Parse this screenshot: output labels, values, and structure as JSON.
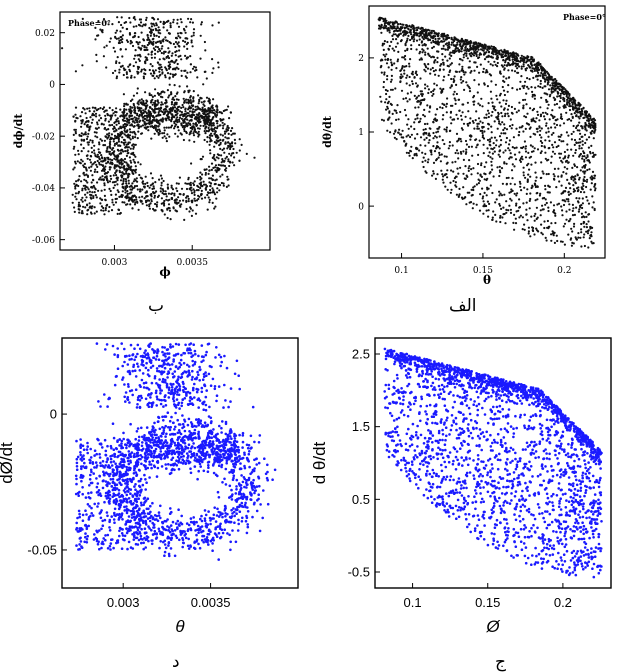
{
  "captions": {
    "top_left": "ب",
    "top_right": "الف",
    "bottom_left": "د",
    "bottom_right": "ج"
  },
  "chart_data": [
    {
      "id": "b",
      "type": "scatter",
      "style": "print",
      "annotation": "Phase=0°",
      "xlabel": "ϕ",
      "ylabel": "dϕ/dt",
      "xlim": [
        0.00265,
        0.004
      ],
      "ylim": [
        -0.064,
        0.028
      ],
      "xticks": [
        0.003,
        0.0035
      ],
      "xtick_labels": [
        "0.003",
        "0.0035"
      ],
      "yticks": [
        0.02,
        0.0,
        -0.02,
        -0.04,
        -0.06
      ],
      "ytick_labels": [
        "0.02",
        "0",
        "-0.02",
        "-0.04",
        "-0.06"
      ],
      "point_color": "#111111"
    },
    {
      "id": "alef",
      "type": "scatter",
      "style": "print",
      "annotation": "Phase=0°",
      "xlabel": "θ",
      "ylabel": "dθ/dt",
      "xlim": [
        0.08,
        0.225
      ],
      "ylim": [
        -0.7,
        2.7
      ],
      "xticks": [
        0.1,
        0.15,
        0.2
      ],
      "xtick_labels": [
        "0.1",
        "0.15",
        "0.2"
      ],
      "yticks": [
        2,
        1,
        0
      ],
      "ytick_labels": [
        "2",
        "1",
        "0"
      ],
      "point_color": "#111111"
    },
    {
      "id": "d",
      "type": "scatter",
      "style": "plot",
      "xlabel": "θ",
      "ylabel": "dØ/dt",
      "xlim": [
        0.00265,
        0.004
      ],
      "ylim": [
        -0.064,
        0.028
      ],
      "xticks": [
        0.003,
        0.0035
      ],
      "xtick_labels": [
        "0.003",
        "0.0035"
      ],
      "yticks": [
        0.0,
        -0.05
      ],
      "ytick_labels": [
        "0",
        "-0.05"
      ],
      "point_color": "#1a1aff"
    },
    {
      "id": "j",
      "type": "scatter",
      "style": "plot",
      "xlabel": "Ø",
      "ylabel": "d θ/dt",
      "xlim": [
        0.075,
        0.232
      ],
      "ylim": [
        -0.72,
        2.72
      ],
      "xticks": [
        0.1,
        0.15,
        0.2
      ],
      "xtick_labels": [
        "0.1",
        "0.15",
        "0.2"
      ],
      "yticks": [
        2.5,
        1.5,
        0.5,
        -0.5
      ],
      "ytick_labels": [
        "2.5",
        "1.5",
        "0.5",
        "-0.5"
      ],
      "point_color": "#1a1aff"
    }
  ]
}
